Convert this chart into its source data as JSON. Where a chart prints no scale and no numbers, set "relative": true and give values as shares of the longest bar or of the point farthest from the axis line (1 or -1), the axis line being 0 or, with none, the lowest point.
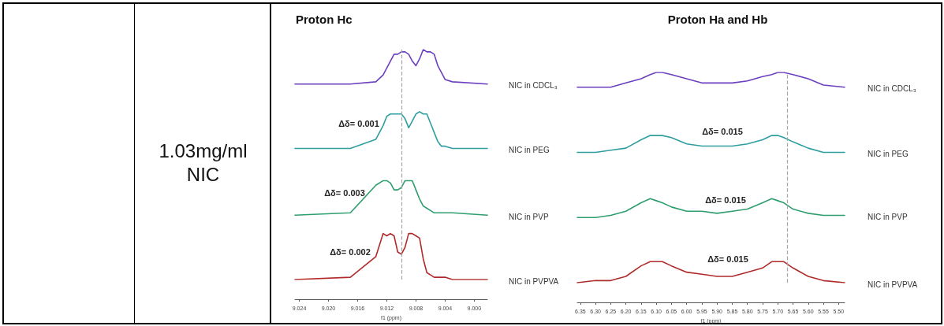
{
  "chart_data": [
    {
      "type": "other",
      "annotations": [
        "1.03mg/ml NIC"
      ]
    },
    {
      "type": "line",
      "relative": true,
      "title": "Proton Hc",
      "xlabel": "f1 (ppm)",
      "x": [
        9.0246,
        9.017,
        9.0135,
        9.0125,
        9.012,
        9.0115,
        9.011,
        9.0105,
        9.01,
        9.0095,
        9.009,
        9.0085,
        9.008,
        9.0075,
        9.007,
        9.0065,
        9.006,
        9.0055,
        9.005,
        9.0045,
        9.004,
        9.003,
        8.9982
      ],
      "xlim": [
        9.0246,
        8.9982
      ],
      "xticks": [
        9.024,
        {
          "value": 9.02,
          "label": "9.020"
        },
        9.016,
        9.012,
        9.008,
        9.004,
        {
          "value": 9,
          "label": "9.000"
        }
      ],
      "series": [
        {
          "name": "NIC in CDCL₃",
          "color": "#6b3fc0",
          "values": [
            0.85,
            0.85,
            0.86,
            0.89,
            0.92,
            0.95,
            0.98,
            0.98,
            0.99,
            0.99,
            0.98,
            0.95,
            0.93,
            0.96,
            1.0,
            0.99,
            0.99,
            0.98,
            0.93,
            0.9,
            0.87,
            0.86,
            0.85
          ]
        },
        {
          "name": "NIC in PEG",
          "color": "#2e9ea0",
          "values": [
            0.57,
            0.57,
            0.61,
            0.67,
            0.71,
            0.72,
            0.72,
            0.72,
            0.72,
            0.7,
            0.66,
            0.69,
            0.72,
            0.73,
            0.72,
            0.72,
            0.68,
            0.64,
            0.6,
            0.58,
            0.58,
            0.57,
            0.57
          ]
        },
        {
          "name": "NIC in PVP",
          "color": "#2e9e6e",
          "values": [
            0.28,
            0.29,
            0.41,
            0.43,
            0.43,
            0.42,
            0.39,
            0.39,
            0.4,
            0.43,
            0.43,
            0.43,
            0.39,
            0.35,
            0.32,
            0.31,
            0.3,
            0.29,
            0.29,
            0.29,
            0.29,
            0.29,
            0.28
          ]
        },
        {
          "name": "NIC in PVPVA",
          "color": "#b02a2a",
          "values": [
            0,
            0.01,
            0.1,
            0.2,
            0.19,
            0.2,
            0.19,
            0.12,
            0.11,
            0.14,
            0.2,
            0.2,
            0.19,
            0.18,
            0.09,
            0.03,
            0.02,
            0.01,
            0.01,
            0.01,
            0.01,
            0,
            0
          ]
        }
      ],
      "ref_lines": [
        {
          "axis": "x",
          "value": 9.0101,
          "color": "#a6a6a6",
          "line_style": "dashed"
        }
      ],
      "annotations": [
        "Δδ= 0.001",
        "Δδ= 0.003",
        "Δδ= 0.002"
      ]
    },
    {
      "type": "line",
      "relative": true,
      "title": "Proton Ha and Hb",
      "xlabel": "f1 (ppm)",
      "x": [
        6.36,
        6.3,
        6.25,
        6.2,
        6.15,
        6.12,
        6.1,
        6.08,
        6.05,
        6.0,
        5.95,
        5.9,
        5.85,
        5.8,
        5.75,
        5.72,
        5.7,
        5.68,
        5.65,
        5.6,
        5.55,
        5.48
      ],
      "xlim": [
        6.36,
        5.48
      ],
      "xticks": [
        6.35,
        {
          "value": 6.3,
          "label": "6.30"
        },
        6.25,
        {
          "value": 6.2,
          "label": "6.20"
        },
        6.15,
        {
          "value": 6.1,
          "label": "6.10"
        },
        6.05,
        {
          "value": 6,
          "label": "6.00"
        },
        5.95,
        {
          "value": 5.9,
          "label": "5.90"
        },
        5.85,
        {
          "value": 5.8,
          "label": "5.80"
        },
        5.75,
        {
          "value": 5.7,
          "label": "5.70"
        },
        5.65,
        {
          "value": 5.6,
          "label": "5.60"
        },
        5.55,
        {
          "value": 5.5,
          "label": "5.50"
        }
      ],
      "series": [
        {
          "name": "NIC in CDCL₃",
          "color": "#6b3fc0",
          "values": [
            0.93,
            0.93,
            0.93,
            0.95,
            0.97,
            0.99,
            1.0,
            1.0,
            0.99,
            0.97,
            0.95,
            0.95,
            0.95,
            0.96,
            0.98,
            0.99,
            1.0,
            1.0,
            0.99,
            0.97,
            0.94,
            0.93
          ]
        },
        {
          "name": "NIC in PEG",
          "color": "#2e9ea0",
          "values": [
            0.62,
            0.62,
            0.63,
            0.64,
            0.68,
            0.7,
            0.7,
            0.7,
            0.69,
            0.66,
            0.65,
            0.65,
            0.65,
            0.66,
            0.68,
            0.7,
            0.7,
            0.69,
            0.67,
            0.64,
            0.62,
            0.62
          ]
        },
        {
          "name": "NIC in PVP",
          "color": "#2e9e6e",
          "values": [
            0.31,
            0.31,
            0.32,
            0.34,
            0.38,
            0.4,
            0.39,
            0.38,
            0.36,
            0.34,
            0.34,
            0.33,
            0.34,
            0.35,
            0.38,
            0.4,
            0.39,
            0.38,
            0.35,
            0.33,
            0.32,
            0.32
          ]
        },
        {
          "name": "NIC in PVPVA",
          "color": "#b02a2a",
          "values": [
            0,
            0.01,
            0.01,
            0.03,
            0.08,
            0.1,
            0.1,
            0.1,
            0.08,
            0.05,
            0.04,
            0.03,
            0.03,
            0.05,
            0.07,
            0.1,
            0.1,
            0.1,
            0.07,
            0.03,
            0.01,
            0
          ]
        }
      ],
      "ref_lines": [
        {
          "axis": "x",
          "value": 5.67,
          "color": "#a6a6a6",
          "line_style": "dashed"
        }
      ],
      "annotations": [
        "Δδ= 0.015",
        "Δδ= 0.015",
        "Δδ= 0.015"
      ]
    }
  ]
}
